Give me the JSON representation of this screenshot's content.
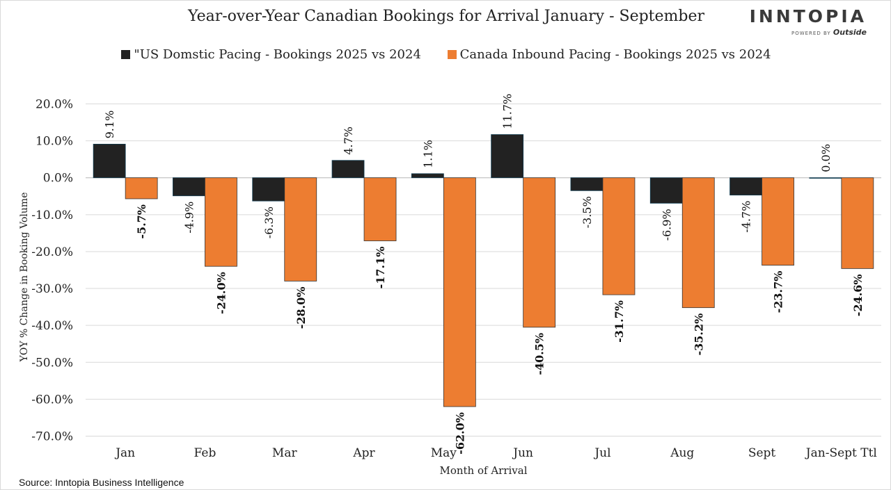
{
  "logo": {
    "word": "INNTOPIA",
    "sub_prefix": "POWERED BY",
    "sub_brand": "Outside"
  },
  "source": "Source: Inntopia  Business Intelligence",
  "chart_data": {
    "type": "bar",
    "title": "Year-over-Year Canadian Bookings for Arrival January - September",
    "xlabel": "Month of Arrival",
    "ylabel": "YOY % Change in Booking Volume",
    "ylim": [
      -70,
      20
    ],
    "yticks": [
      20,
      10,
      0,
      -10,
      -20,
      -30,
      -40,
      -50,
      -60,
      -70
    ],
    "ytick_labels": [
      "20.0%",
      "10.0%",
      "0.0%",
      "-10.0%",
      "-20.0%",
      "-30.0%",
      "-40.0%",
      "-50.0%",
      "-60.0%",
      "-70.0%"
    ],
    "grid": true,
    "legend_position": "top",
    "categories": [
      "Jan",
      "Feb",
      "Mar",
      "Apr",
      "May",
      "Jun",
      "Jul",
      "Aug",
      "Sept",
      "Jan-Sept Ttl"
    ],
    "series": [
      {
        "name": "\"US Domstic Pacing - Bookings 2025 vs 2024",
        "color": "#222222",
        "values": [
          9.1,
          -4.9,
          -6.3,
          4.7,
          1.1,
          11.7,
          -3.5,
          -6.9,
          -4.7,
          0.0
        ],
        "labels": [
          "9.1%",
          "-4.9%",
          "-6.3%",
          "4.7%",
          "1.1%",
          "11.7%",
          "-3.5%",
          "-6.9%",
          "-4.7%",
          "0.0%"
        ],
        "label_bold": false
      },
      {
        "name": "Canada Inbound Pacing - Bookings 2025 vs 2024",
        "color": "#ED7D31",
        "values": [
          -5.7,
          -24.0,
          -28.0,
          -17.1,
          -62.0,
          -40.5,
          -31.7,
          -35.2,
          -23.7,
          -24.6
        ],
        "labels": [
          "-5.7%",
          "-24.0%",
          "-28.0%",
          "-17.1%",
          "-62.0%",
          "-40.5%",
          "-31.7%",
          "-35.2%",
          "-23.7%",
          "-24.6%"
        ],
        "label_bold": true
      }
    ]
  }
}
